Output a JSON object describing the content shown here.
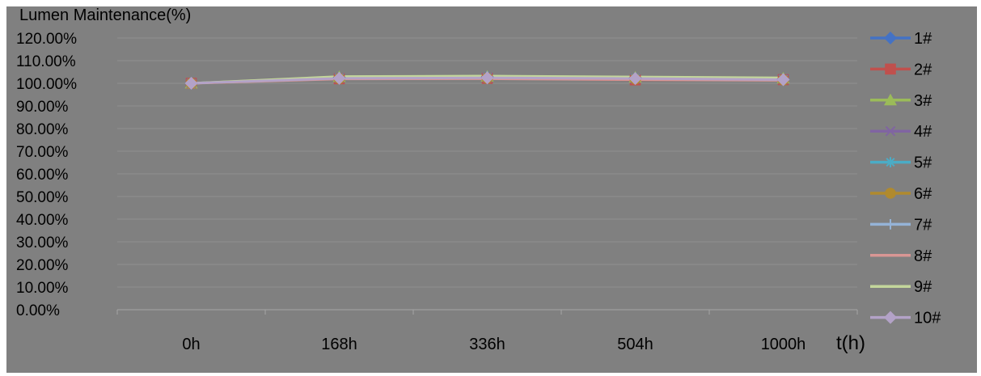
{
  "chart_data": {
    "type": "line",
    "title": "",
    "ylabel": "Lumen Maintenance(%)",
    "xlabel": "t(h)",
    "categories": [
      "0h",
      "168h",
      "336h",
      "504h",
      "1000h"
    ],
    "y_ticks": [
      "120.00%",
      "110.00%",
      "100.00%",
      "90.00%",
      "80.00%",
      "70.00%",
      "60.00%",
      "50.00%",
      "40.00%",
      "30.00%",
      "20.00%",
      "10.00%",
      "0.00%"
    ],
    "ylim": [
      0,
      120
    ],
    "grid": true,
    "legend_position": "right",
    "series": [
      {
        "name": "1#",
        "values": [
          100,
          102.5,
          102.8,
          102.3,
          101.8
        ]
      },
      {
        "name": "2#",
        "values": [
          100,
          102.0,
          102.2,
          101.5,
          101.6
        ]
      },
      {
        "name": "3#",
        "values": [
          100,
          102.8,
          103.0,
          102.6,
          102.2
        ]
      },
      {
        "name": "4#",
        "values": [
          100,
          102.3,
          102.5,
          102.0,
          101.7
        ]
      },
      {
        "name": "5#",
        "values": [
          100,
          102.4,
          102.6,
          102.2,
          101.8
        ]
      },
      {
        "name": "6#",
        "values": [
          100,
          102.1,
          102.3,
          101.9,
          101.5
        ]
      },
      {
        "name": "7#",
        "values": [
          100,
          102.6,
          102.9,
          102.4,
          102.0
        ]
      },
      {
        "name": "8#",
        "values": [
          100,
          101.9,
          102.0,
          101.6,
          101.3
        ]
      },
      {
        "name": "9#",
        "values": [
          100,
          103.0,
          103.2,
          102.8,
          102.4
        ]
      },
      {
        "name": "10#",
        "values": [
          100,
          102.2,
          102.4,
          102.1,
          101.6
        ]
      }
    ]
  },
  "style": {
    "plot_background": "#808080",
    "gridline_color": "#909090",
    "series_colors": [
      "#4472c4",
      "#c0504d",
      "#9bbb59",
      "#8064a2",
      "#4bacc6",
      "#b08a2e",
      "#95b3d7",
      "#d99694",
      "#c3d69b",
      "#b3a2c7"
    ],
    "series_markers": [
      "diamond",
      "square",
      "triangle",
      "x",
      "star",
      "circle",
      "plus",
      "none",
      "none",
      "diamond"
    ]
  }
}
